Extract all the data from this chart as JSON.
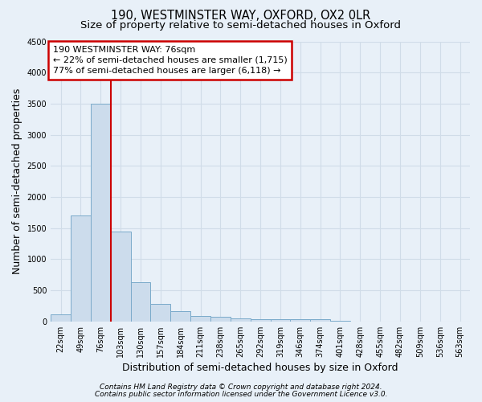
{
  "title1": "190, WESTMINSTER WAY, OXFORD, OX2 0LR",
  "title2": "Size of property relative to semi-detached houses in Oxford",
  "xlabel": "Distribution of semi-detached houses by size in Oxford",
  "ylabel": "Number of semi-detached properties",
  "footnote1": "Contains HM Land Registry data © Crown copyright and database right 2024.",
  "footnote2": "Contains public sector information licensed under the Government Licence v3.0.",
  "categories": [
    "22sqm",
    "49sqm",
    "76sqm",
    "103sqm",
    "130sqm",
    "157sqm",
    "184sqm",
    "211sqm",
    "238sqm",
    "265sqm",
    "292sqm",
    "319sqm",
    "346sqm",
    "374sqm",
    "401sqm",
    "428sqm",
    "455sqm",
    "482sqm",
    "509sqm",
    "536sqm",
    "563sqm"
  ],
  "values": [
    120,
    1700,
    3500,
    1450,
    630,
    280,
    160,
    90,
    75,
    55,
    40,
    30,
    35,
    30,
    5,
    4,
    3,
    2,
    2,
    1,
    1
  ],
  "bar_color": "#ccdcec",
  "bar_edge_color": "#7aaaca",
  "highlight_index": 2,
  "highlight_color": "#cc0000",
  "annotation_text": "190 WESTMINSTER WAY: 76sqm\n← 22% of semi-detached houses are smaller (1,715)\n77% of semi-detached houses are larger (6,118) →",
  "annotation_box_color": "#ffffff",
  "annotation_box_edge_color": "#cc0000",
  "ylim": [
    0,
    4500
  ],
  "yticks": [
    0,
    500,
    1000,
    1500,
    2000,
    2500,
    3000,
    3500,
    4000,
    4500
  ],
  "background_color": "#e8f0f8",
  "grid_color": "#d0dce8",
  "title_fontsize": 10.5,
  "subtitle_fontsize": 9.5,
  "axis_label_fontsize": 9,
  "tick_fontsize": 7,
  "annotation_fontsize": 8,
  "footnote_fontsize": 6.5
}
